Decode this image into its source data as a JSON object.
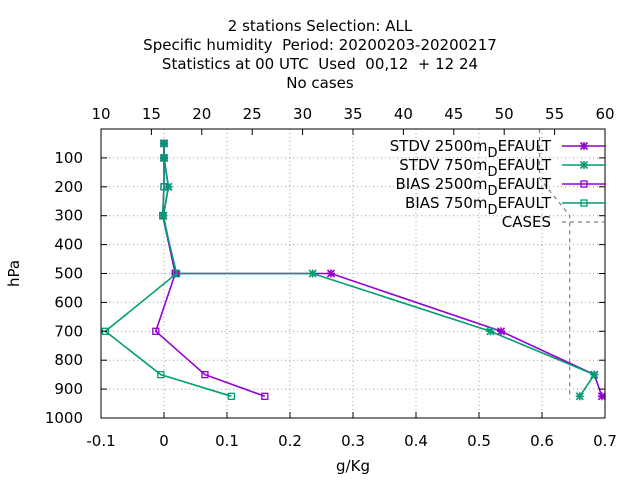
{
  "title_lines": [
    "2 stations Selection: ALL",
    "Specific humidity  Period: 20200203-20200217",
    "Statistics at 00 UTC  Used  00,12  + 12 24",
    "No cases"
  ],
  "chart_data": {
    "type": "line",
    "xlabel": "g/Kg",
    "ylabel": "hPa",
    "x2label": "",
    "xlim": [
      -0.1,
      0.7
    ],
    "x2lim": [
      10,
      60
    ],
    "ylim": [
      1000,
      0
    ],
    "y_reversed": true,
    "xticks": [
      "-0.1",
      "0",
      "0.1",
      "0.2",
      "0.3",
      "0.4",
      "0.5",
      "0.6",
      "0.7"
    ],
    "x2ticks": [
      "10",
      "15",
      "20",
      "25",
      "30",
      "35",
      "40",
      "45",
      "50",
      "55",
      "60"
    ],
    "yticks": [
      "100",
      "200",
      "300",
      "400",
      "500",
      "600",
      "700",
      "800",
      "900",
      "1000"
    ],
    "grid": true,
    "legend_position": "top-right",
    "series": [
      {
        "name": "STDV 2500m_DEFAULT",
        "color": "#9400d3",
        "marker": "star",
        "points": [
          [
            0.0,
            50
          ],
          [
            0.0,
            100
          ],
          [
            0.007,
            200
          ],
          [
            -0.001,
            300
          ],
          [
            0.018,
            500
          ],
          [
            0.265,
            500
          ],
          [
            0.535,
            700
          ],
          [
            0.683,
            850
          ],
          [
            0.695,
            925
          ]
        ]
      },
      {
        "name": "STDV 750m_DEFAULT",
        "color": "#009e73",
        "marker": "star",
        "points": [
          [
            0.0,
            50
          ],
          [
            0.0,
            100
          ],
          [
            0.007,
            200
          ],
          [
            -0.001,
            300
          ],
          [
            0.018,
            500
          ],
          [
            0.236,
            500
          ],
          [
            0.518,
            700
          ],
          [
            0.683,
            850
          ],
          [
            0.66,
            925
          ]
        ]
      },
      {
        "name": "BIAS 2500m_DEFAULT",
        "color": "#9400d3",
        "marker": "square",
        "points": [
          [
            0.0,
            50
          ],
          [
            0.0,
            100
          ],
          [
            0.0,
            200
          ],
          [
            -0.002,
            300
          ],
          [
            0.018,
            500
          ],
          [
            -0.013,
            700
          ],
          [
            0.065,
            850
          ],
          [
            0.16,
            925
          ]
        ]
      },
      {
        "name": "BIAS 750m_DEFAULT",
        "color": "#009e73",
        "marker": "square",
        "points": [
          [
            0.0,
            50
          ],
          [
            0.0,
            100
          ],
          [
            0.0,
            200
          ],
          [
            -0.002,
            300
          ],
          [
            0.02,
            500
          ],
          [
            -0.093,
            700
          ],
          [
            -0.005,
            850
          ],
          [
            0.107,
            925
          ]
        ]
      }
    ],
    "cases": {
      "name": "CASES",
      "color": "#808080",
      "dashed": true,
      "points": [
        [
          53.5,
          0
        ],
        [
          53.5,
          170
        ],
        [
          56.5,
          300
        ],
        [
          56.5,
          935
        ]
      ]
    }
  },
  "legend": [
    {
      "label_main": "STDV 2500m",
      "label_sub": "D",
      "label_tail": "EFAULT",
      "color": "#9400d3",
      "marker": "star"
    },
    {
      "label_main": "STDV 750m",
      "label_sub": "D",
      "label_tail": "EFAULT",
      "color": "#009e73",
      "marker": "star"
    },
    {
      "label_main": "BIAS 2500m",
      "label_sub": "D",
      "label_tail": "EFAULT",
      "color": "#9400d3",
      "marker": "square"
    },
    {
      "label_main": "BIAS 750m",
      "label_sub": "D",
      "label_tail": "EFAULT",
      "color": "#009e73",
      "marker": "square"
    },
    {
      "label_main": "CASES",
      "label_sub": "",
      "label_tail": "",
      "color": "#808080",
      "marker": "dash"
    }
  ]
}
